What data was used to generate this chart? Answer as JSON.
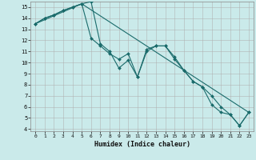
{
  "xlabel": "Humidex (Indice chaleur)",
  "background_color": "#caeaea",
  "grid_color": "#b0b0b0",
  "line_color": "#1a6b6b",
  "xlim": [
    -0.5,
    23.5
  ],
  "ylim": [
    3.8,
    15.5
  ],
  "xticks": [
    0,
    1,
    2,
    3,
    4,
    5,
    6,
    7,
    8,
    9,
    10,
    11,
    12,
    13,
    14,
    15,
    16,
    17,
    18,
    19,
    20,
    21,
    22,
    23
  ],
  "yticks": [
    4,
    5,
    6,
    7,
    8,
    9,
    10,
    11,
    12,
    13,
    14,
    15
  ],
  "line1_x": [
    0,
    1,
    2,
    3,
    4,
    5,
    6,
    7,
    8,
    9,
    10,
    11,
    12,
    13,
    14,
    15,
    16,
    17,
    18,
    19,
    20,
    21,
    22,
    23
  ],
  "line1_y": [
    13.5,
    14.0,
    14.3,
    14.7,
    15.0,
    15.3,
    12.2,
    11.5,
    10.8,
    10.3,
    10.8,
    8.7,
    11.2,
    11.5,
    11.5,
    10.5,
    9.3,
    8.3,
    7.8,
    7.0,
    6.0,
    5.3,
    4.3,
    5.5
  ],
  "line2_x": [
    0,
    1,
    2,
    3,
    4,
    5,
    6,
    7,
    8,
    9,
    10,
    11,
    12,
    13,
    14,
    15,
    16,
    17,
    18,
    19,
    20,
    21,
    22,
    23
  ],
  "line2_y": [
    13.5,
    14.0,
    14.3,
    14.7,
    15.0,
    15.3,
    15.5,
    11.7,
    11.0,
    9.5,
    10.2,
    8.7,
    11.0,
    11.5,
    11.5,
    10.3,
    9.3,
    8.3,
    7.8,
    6.2,
    5.5,
    5.3,
    4.3,
    5.5
  ],
  "line3_x": [
    0,
    5,
    23
  ],
  "line3_y": [
    13.5,
    15.3,
    5.5
  ]
}
